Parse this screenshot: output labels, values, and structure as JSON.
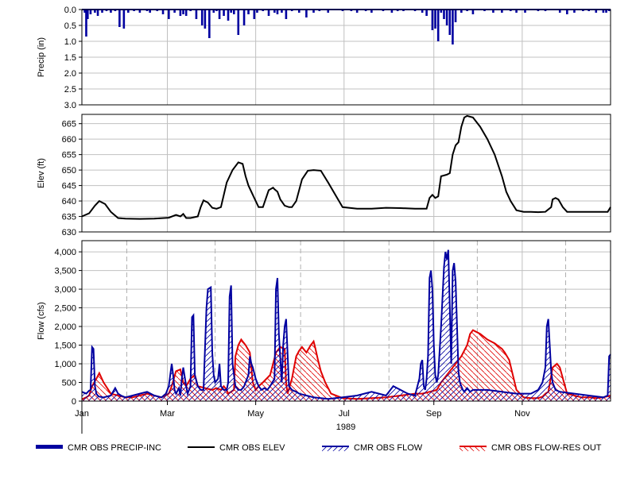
{
  "chart_data": [
    {
      "type": "bar",
      "panel": "precip",
      "ylabel": "Precip (in)",
      "ylim": [
        0,
        3.0
      ],
      "inverted_y": true,
      "yticks": [
        "0.0",
        "0.5",
        "1.0",
        "1.5",
        "2.0",
        "2.5",
        "3.0"
      ],
      "color": "#0000a0",
      "series": [
        {
          "name": "CMR OBS PRECIP-INC",
          "day_of_year": [
            2,
            3,
            4,
            6,
            9,
            11,
            14,
            17,
            20,
            23,
            26,
            29,
            32,
            36,
            40,
            45,
            47,
            52,
            56,
            60,
            64,
            68,
            70,
            72,
            75,
            79,
            83,
            85,
            88,
            91,
            93,
            95,
            98,
            101,
            103,
            105,
            108,
            112,
            115,
            119,
            121,
            125,
            129,
            133,
            135,
            138,
            141,
            145,
            150,
            155,
            160,
            164,
            170,
            180,
            186,
            190,
            196,
            200,
            208,
            214,
            218,
            222,
            230,
            235,
            238,
            242,
            244,
            246,
            248,
            250,
            252,
            254,
            256,
            258,
            262,
            266,
            270,
            278,
            284,
            290,
            296,
            300,
            306,
            315,
            320,
            330,
            335,
            340,
            346,
            350,
            355,
            360,
            362,
            364
          ],
          "values": [
            0.1,
            0.85,
            0.3,
            0.15,
            0.1,
            0.2,
            0.1,
            0.05,
            0.1,
            0.05,
            0.55,
            0.6,
            0.1,
            0.05,
            0.1,
            0.05,
            0.1,
            0.05,
            0.15,
            0.3,
            0.1,
            0.2,
            0.15,
            0.2,
            0.05,
            0.3,
            0.5,
            0.6,
            0.9,
            0.1,
            0.05,
            0.3,
            0.2,
            0.35,
            0.1,
            0.15,
            0.8,
            0.5,
            0.15,
            0.3,
            0.1,
            0.05,
            0.2,
            0.1,
            0.15,
            0.1,
            0.3,
            0.05,
            0.1,
            0.25,
            0.1,
            0.05,
            0.1,
            0.05,
            0.05,
            0.1,
            0.05,
            0.1,
            0.05,
            0.1,
            0.05,
            0.05,
            0.05,
            0.1,
            0.2,
            0.65,
            0.6,
            1.0,
            0.1,
            0.3,
            0.5,
            0.8,
            1.1,
            0.4,
            0.1,
            0.05,
            0.15,
            0.05,
            0.1,
            0.1,
            0.05,
            0.1,
            0.1,
            0.05,
            0.05,
            0.1,
            0.15,
            0.1,
            0.05,
            0.05,
            0.1,
            0.1,
            0.1,
            0.05
          ]
        }
      ]
    },
    {
      "type": "line",
      "panel": "elev",
      "ylabel": "Elev (ft)",
      "ylim": [
        630,
        668
      ],
      "yticks": [
        "630",
        "635",
        "640",
        "645",
        "650",
        "655",
        "660",
        "665"
      ],
      "color": "#000000",
      "series": [
        {
          "name": "CMR OBS ELEV",
          "day_of_year": [
            0,
            5,
            9,
            12,
            16,
            20,
            25,
            30,
            40,
            50,
            60,
            65,
            68,
            70,
            72,
            75,
            80,
            82,
            84,
            87,
            90,
            93,
            96,
            100,
            104,
            108,
            111,
            113,
            115,
            119,
            122,
            125,
            129,
            132,
            133,
            135,
            137,
            140,
            143,
            145,
            148,
            152,
            156,
            160,
            165,
            170,
            180,
            190,
            195,
            200,
            210,
            220,
            230,
            238,
            240,
            242,
            244,
            246,
            248,
            252,
            254,
            256,
            258,
            260,
            262,
            264,
            266,
            270,
            275,
            280,
            285,
            290,
            293,
            296,
            300,
            305,
            310,
            315,
            320,
            324,
            325,
            327,
            329,
            332,
            335,
            340,
            345,
            350,
            355,
            360,
            363,
            365
          ],
          "values": [
            635.0,
            636.0,
            638.5,
            640.0,
            639.0,
            636.5,
            634.5,
            634.3,
            634.2,
            634.3,
            634.6,
            635.5,
            635.0,
            635.8,
            634.5,
            634.5,
            635.0,
            638.0,
            640.2,
            639.5,
            637.8,
            637.5,
            638.0,
            646.0,
            650.0,
            652.5,
            652.0,
            648.0,
            645.0,
            641.0,
            638.0,
            638.0,
            643.5,
            644.3,
            643.8,
            643.0,
            640.5,
            638.5,
            638.0,
            638.0,
            640.0,
            647.0,
            649.8,
            650.0,
            649.8,
            646.0,
            638.0,
            637.5,
            637.5,
            637.5,
            637.8,
            637.7,
            637.5,
            637.5,
            641.0,
            642.0,
            641.0,
            641.5,
            648.0,
            648.5,
            649.0,
            655.0,
            658.0,
            659.0,
            664.0,
            667.0,
            667.5,
            667.0,
            664.0,
            660.0,
            655.0,
            648.0,
            643.0,
            640.0,
            637.0,
            636.5,
            636.5,
            636.4,
            636.5,
            638.0,
            640.5,
            641.0,
            640.5,
            638.0,
            636.5,
            636.5,
            636.5,
            636.5,
            636.5,
            636.5,
            636.5,
            638.0
          ]
        }
      ]
    },
    {
      "type": "area",
      "panel": "flow",
      "ylabel": "Flow (cfs)",
      "ylim": [
        0,
        4300
      ],
      "yticks": [
        "0",
        "500",
        "1,000",
        "1,500",
        "2,000",
        "2,500",
        "3,000",
        "3,500",
        "4,000"
      ],
      "xticks": [
        "Jan",
        "Mar",
        "May",
        "Jul",
        "Sep",
        "Nov"
      ],
      "xtick_day_of_year": [
        0,
        59,
        120,
        181,
        243,
        304
      ],
      "year_label": "1989",
      "series": [
        {
          "name": "CMR OBS FLOW",
          "color": "#0000a0",
          "day_of_year": [
            0,
            3,
            5,
            6,
            7,
            8,
            9,
            10,
            11,
            12,
            15,
            20,
            23,
            25,
            27,
            30,
            35,
            40,
            45,
            50,
            55,
            58,
            60,
            62,
            63,
            64,
            65,
            67,
            68,
            69,
            70,
            72,
            73,
            75,
            76,
            77,
            78,
            80,
            82,
            84,
            86,
            87,
            89,
            90,
            91,
            92,
            94,
            95,
            96,
            98,
            100,
            101,
            102,
            103,
            104,
            106,
            108,
            110,
            112,
            114,
            115,
            116,
            117,
            118,
            120,
            122,
            124,
            126,
            128,
            130,
            133,
            134,
            135,
            136,
            138,
            139,
            140,
            141,
            143,
            145,
            148,
            150,
            155,
            160,
            165,
            170,
            180,
            190,
            195,
            200,
            205,
            210,
            215,
            220,
            225,
            230,
            233,
            234,
            235,
            236,
            237,
            238,
            239,
            240,
            241,
            242,
            243,
            244,
            245,
            246,
            248,
            250,
            251,
            252,
            253,
            254,
            255,
            256,
            257,
            258,
            259,
            260,
            261,
            262,
            263,
            264,
            265,
            266,
            268,
            270,
            275,
            280,
            290,
            300,
            305,
            310,
            315,
            318,
            320,
            321,
            322,
            323,
            324,
            325,
            327,
            330,
            340,
            350,
            360,
            363,
            364,
            365
          ],
          "values": [
            250,
            200,
            280,
            300,
            1450,
            1400,
            400,
            200,
            150,
            120,
            100,
            150,
            350,
            200,
            150,
            100,
            150,
            200,
            250,
            150,
            100,
            200,
            400,
            1000,
            700,
            300,
            200,
            350,
            150,
            600,
            900,
            400,
            200,
            400,
            2250,
            2300,
            700,
            400,
            300,
            300,
            2500,
            3000,
            3050,
            1300,
            700,
            500,
            600,
            1000,
            400,
            300,
            300,
            500,
            2800,
            3100,
            1000,
            400,
            300,
            300,
            400,
            600,
            700,
            1200,
            1000,
            900,
            600,
            400,
            300,
            350,
            300,
            400,
            600,
            3000,
            3300,
            1800,
            500,
            1500,
            2000,
            2200,
            400,
            300,
            250,
            200,
            150,
            100,
            80,
            60,
            100,
            150,
            200,
            250,
            200,
            150,
            400,
            300,
            200,
            150,
            600,
            1000,
            1100,
            400,
            300,
            600,
            1200,
            3300,
            3500,
            3000,
            1500,
            700,
            500,
            700,
            2000,
            3600,
            4000,
            3800,
            4050,
            2500,
            1000,
            3500,
            3700,
            3200,
            2000,
            800,
            500,
            400,
            300,
            250,
            300,
            350,
            250,
            300,
            300,
            300,
            250,
            200,
            200,
            200,
            300,
            500,
            900,
            2000,
            2200,
            1500,
            800,
            500,
            300,
            250,
            200,
            150,
            100,
            150,
            1200,
            1250
          ]
        },
        {
          "name": "CMR OBS FLOW-RES OUT",
          "color": "#e00000",
          "day_of_year": [
            0,
            3,
            5,
            7,
            10,
            12,
            15,
            20,
            25,
            30,
            35,
            40,
            45,
            50,
            55,
            60,
            62,
            65,
            68,
            70,
            72,
            75,
            78,
            80,
            85,
            90,
            93,
            96,
            98,
            100,
            101,
            105,
            106,
            108,
            110,
            113,
            116,
            118,
            120,
            122,
            125,
            130,
            134,
            137,
            140,
            141,
            142,
            145,
            148,
            150,
            152,
            155,
            158,
            159,
            160,
            161,
            163,
            165,
            168,
            172,
            180,
            190,
            200,
            210,
            220,
            230,
            235,
            240,
            245,
            248,
            250,
            252,
            254,
            256,
            258,
            260,
            262,
            266,
            268,
            270,
            275,
            280,
            285,
            290,
            292,
            295,
            300,
            305,
            310,
            315,
            318,
            320,
            322,
            325,
            328,
            330,
            335,
            340,
            345,
            350,
            355,
            360,
            365
          ],
          "values": [
            50,
            100,
            150,
            400,
            600,
            750,
            500,
            200,
            150,
            100,
            100,
            150,
            200,
            150,
            100,
            200,
            400,
            800,
            850,
            500,
            400,
            600,
            700,
            400,
            350,
            300,
            350,
            300,
            400,
            300,
            200,
            300,
            1200,
            1500,
            1650,
            1500,
            1300,
            500,
            300,
            400,
            500,
            700,
            1300,
            1450,
            1400,
            500,
            200,
            600,
            1200,
            1350,
            1450,
            1300,
            1500,
            1550,
            1600,
            1450,
            1100,
            800,
            500,
            200,
            80,
            60,
            80,
            100,
            150,
            200,
            200,
            250,
            300,
            500,
            600,
            700,
            800,
            900,
            1000,
            1100,
            1200,
            1500,
            1800,
            1900,
            1800,
            1650,
            1550,
            1400,
            1300,
            1100,
            300,
            100,
            80,
            80,
            120,
            200,
            250,
            900,
            1000,
            900,
            200,
            150,
            100,
            100,
            80,
            100,
            150
          ]
        }
      ]
    }
  ],
  "legend": [
    {
      "label": "CMR OBS PRECIP-INC",
      "style": "thick-bar",
      "color": "#0000a0"
    },
    {
      "label": "CMR OBS ELEV",
      "style": "line",
      "color": "#000000"
    },
    {
      "label": "CMR OBS FLOW",
      "style": "hatched-line",
      "color": "#0000a0"
    },
    {
      "label": "CMR OBS FLOW-RES OUT",
      "style": "hatched-line",
      "color": "#e00000"
    }
  ]
}
